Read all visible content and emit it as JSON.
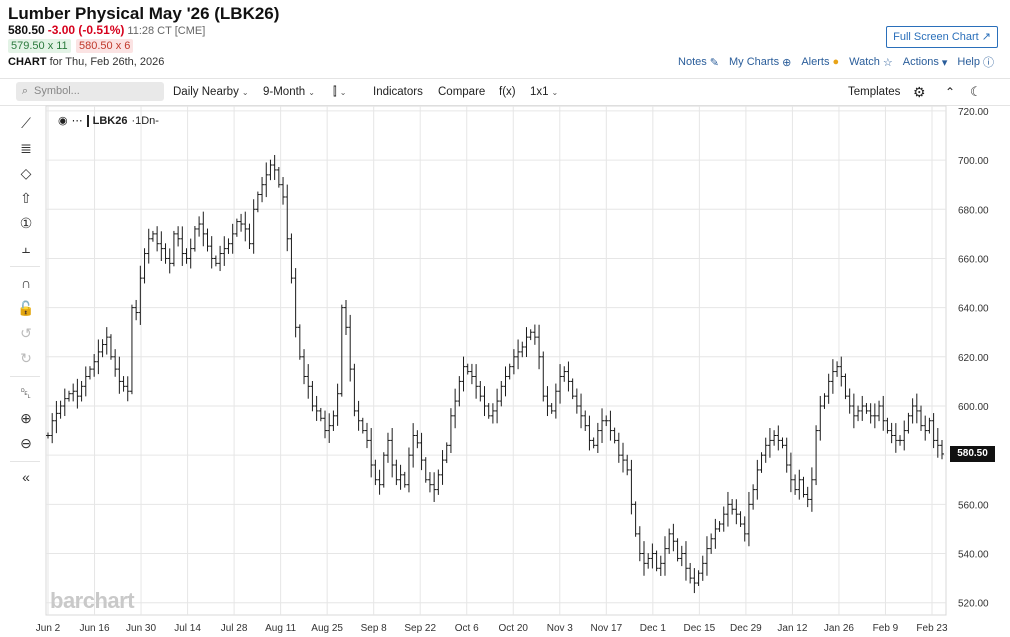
{
  "header": {
    "title": "Lumber Physical May '26 (LBK26)",
    "last": "580.50",
    "change": "-3.00 (-0.51%)",
    "time": "11:28 CT [CME]",
    "bid": "579.50 x 11",
    "ask": "580.50 x 6",
    "chart_for_prefix": "CHART",
    "chart_for_text": "for Thu, Feb 26th, 2026",
    "fullscreen": "Full Screen Chart"
  },
  "toplinks": {
    "notes": "Notes",
    "my_charts": "My Charts",
    "alerts": "Alerts",
    "watch": "Watch",
    "actions": "Actions",
    "help": "Help"
  },
  "toolbar": {
    "search_placeholder": "Symbol...",
    "period": "Daily Nearby",
    "range": "9-Month",
    "indicators": "Indicators",
    "compare": "Compare",
    "fx": "f(x)",
    "layout": "1x1",
    "templates": "Templates"
  },
  "plot": {
    "symbol": "LBK26",
    "interval": "·1Dn-",
    "watermark": "barchart",
    "last_label": "580.50"
  },
  "icons": {
    "left_tools": [
      "draw-line-icon",
      "draw-text-icon",
      "shape-icon",
      "arrow-up-icon",
      "number-icon",
      "measure-icon",
      "magnet-icon",
      "lock-icon",
      "undo-icon",
      "redo-icon",
      "trash-icon",
      "zoom-in-icon",
      "zoom-out-icon",
      "collapse-icon"
    ]
  },
  "chart_data": {
    "type": "bar",
    "style": "ohlc",
    "ylim": [
      515,
      722
    ],
    "y_ticks": [
      "720.00",
      "700.00",
      "680.00",
      "660.00",
      "640.00",
      "620.00",
      "600.00",
      "580.00",
      "560.00",
      "540.00",
      "520.00"
    ],
    "x_ticks": [
      "Jun 2",
      "Jun 16",
      "Jun 30",
      "Jul 14",
      "Jul 28",
      "Aug 11",
      "Aug 25",
      "Sep 8",
      "Sep 22",
      "Oct 6",
      "Oct 20",
      "Nov 3",
      "Nov 17",
      "Dec 1",
      "Dec 15",
      "Dec 29",
      "Jan 12",
      "Jan 26",
      "Feb 9",
      "Feb 23"
    ],
    "closes": [
      588,
      594,
      597,
      600,
      603,
      605,
      606,
      604,
      608,
      612,
      615,
      618,
      622,
      625,
      628,
      620,
      615,
      610,
      608,
      606,
      640,
      638,
      652,
      662,
      668,
      670,
      666,
      664,
      660,
      658,
      670,
      668,
      662,
      660,
      664,
      672,
      674,
      670,
      665,
      660,
      658,
      662,
      664,
      666,
      670,
      675,
      674,
      672,
      666,
      680,
      686,
      690,
      694,
      698,
      696,
      690,
      685,
      668,
      652,
      632,
      620,
      612,
      608,
      600,
      598,
      595,
      590,
      592,
      596,
      605,
      640,
      632,
      615,
      598,
      594,
      590,
      586,
      576,
      570,
      568,
      580,
      586,
      576,
      570,
      572,
      568,
      580,
      588,
      585,
      578,
      570,
      568,
      566,
      572,
      578,
      584,
      596,
      602,
      610,
      616,
      614,
      612,
      608,
      604,
      600,
      596,
      598,
      602,
      608,
      612,
      616,
      620,
      622,
      624,
      628,
      630,
      628,
      620,
      604,
      600,
      598,
      606,
      612,
      614,
      610,
      604,
      600,
      596,
      592,
      586,
      584,
      590,
      594,
      594,
      590,
      586,
      580,
      578,
      574,
      560,
      548,
      540,
      536,
      538,
      540,
      534,
      536,
      542,
      548,
      545,
      538,
      540,
      534,
      530,
      528,
      532,
      536,
      542,
      546,
      550,
      552,
      556,
      560,
      558,
      556,
      552,
      548,
      560,
      566,
      574,
      580,
      584,
      586,
      588,
      586,
      584,
      576,
      570,
      566,
      570,
      564,
      562,
      570,
      590,
      600,
      604,
      610,
      614,
      616,
      612,
      604,
      600,
      596,
      598,
      600,
      598,
      596,
      596,
      600,
      594,
      590,
      588,
      586,
      586,
      590,
      596,
      600,
      598,
      592,
      590,
      594,
      586,
      584,
      580.5
    ],
    "last_label": "580.50"
  }
}
